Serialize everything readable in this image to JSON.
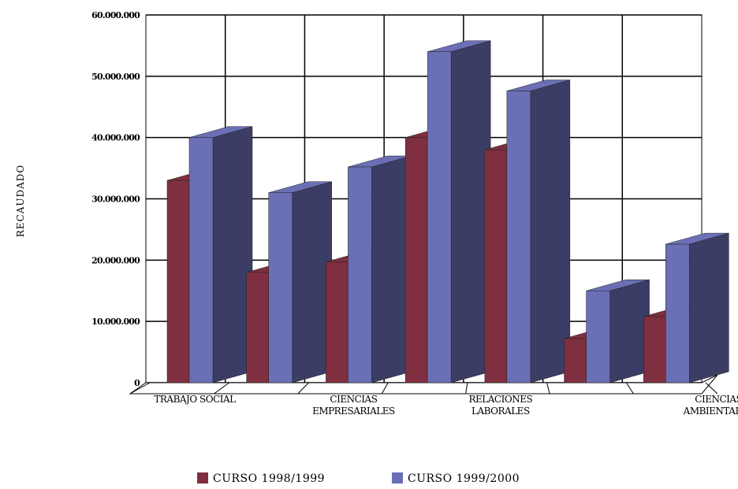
{
  "chart_data": {
    "type": "bar3d",
    "y_label": "RECAUDADO",
    "categories": [
      "TRABAJO SOCIAL",
      null,
      "CIENCIAS EMPRESARIALES",
      null,
      "RELACIONES LABORALES",
      null,
      "CIENCIAS AMBIENTALES"
    ],
    "series": [
      {
        "name": "CURSO 1998/1999",
        "color": "#7f2f3f",
        "values": [
          33000000,
          18000000,
          19700000,
          40000000,
          38000000,
          7200000,
          10800000
        ]
      },
      {
        "name": "CURSO 1999/2000",
        "color": "#6b6fb5",
        "values": [
          40000000,
          31000000,
          35200000,
          54000000,
          47600000,
          15000000,
          22600000
        ]
      }
    ],
    "ylim": [
      0,
      60000000
    ],
    "yticks": [
      {
        "value": 0,
        "label": "0"
      },
      {
        "value": 10000000,
        "label": "10.000.000"
      },
      {
        "value": 20000000,
        "label": "20.000.000"
      },
      {
        "value": 30000000,
        "label": "30.000.000"
      },
      {
        "value": 40000000,
        "label": "40.000.000"
      },
      {
        "value": 50000000,
        "label": "50.000.000"
      },
      {
        "value": 60000000,
        "label": "60.000.000"
      }
    ],
    "grid": true
  }
}
